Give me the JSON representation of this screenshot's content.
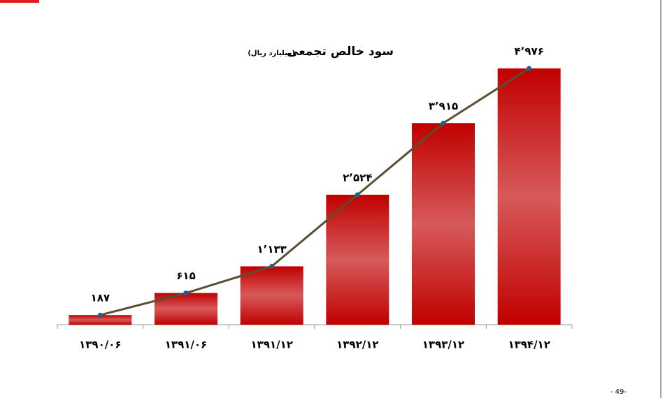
{
  "chart_data": {
    "type": "bar",
    "title": "سود خالص تجمعی",
    "subtitle": "(میلیارد ریال)",
    "categories": [
      "۱۳۹۰/۰۶",
      "۱۳۹۱/۰۶",
      "۱۳۹۱/۱۲",
      "۱۳۹۲/۱۲",
      "۱۳۹۳/۱۲",
      "۱۳۹۴/۱۲"
    ],
    "values": [
      187,
      615,
      1133,
      2524,
      3915,
      4976
    ],
    "value_labels": [
      "۱۸۷",
      "۶۱۵",
      "۱٬۱۳۳",
      "۲٬۵۲۴",
      "۳٬۹۱۵",
      "۴٬۹۷۶"
    ],
    "color": "#c00000",
    "line_overlay": true,
    "line_color": "#5a4e30",
    "marker_color": "#1f5f99"
  },
  "page_number": "- 49-"
}
